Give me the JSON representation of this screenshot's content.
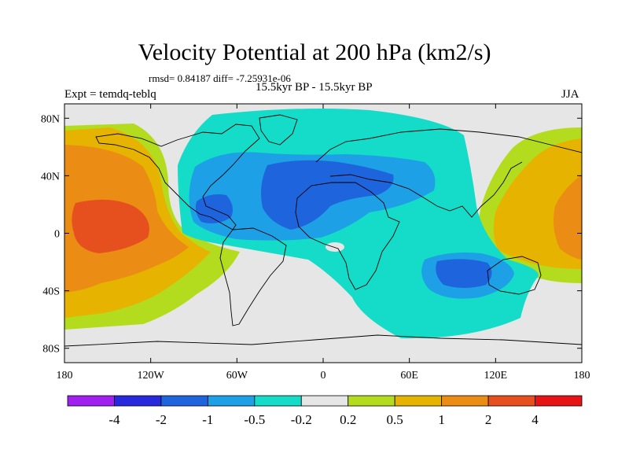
{
  "title": "Velocity Potential at 200 hPa (km2/s)",
  "stats": "rmsd= 0.84187 diff= -7.25931e-06",
  "left_label": "Expt = temdq-teblq",
  "center_label": "15.5kyr BP - 15.5kyr BP",
  "right_label": "JJA",
  "lat_ticks": [
    {
      "value": 80,
      "label": "80N"
    },
    {
      "value": 40,
      "label": "40N"
    },
    {
      "value": 0,
      "label": "0"
    },
    {
      "value": -40,
      "label": "40S"
    },
    {
      "value": -80,
      "label": "80S"
    }
  ],
  "lon_ticks": [
    {
      "value": -180,
      "label": "180"
    },
    {
      "value": -120,
      "label": "120W"
    },
    {
      "value": -60,
      "label": "60W"
    },
    {
      "value": 0,
      "label": "0"
    },
    {
      "value": 60,
      "label": "60E"
    },
    {
      "value": 120,
      "label": "120E"
    },
    {
      "value": 180,
      "label": "180"
    }
  ],
  "colorbar": {
    "colors": [
      "#a020f0",
      "#2828dc",
      "#1e64dc",
      "#1ea0e6",
      "#14dcc8",
      "#e6e6e6",
      "#b4dc1e",
      "#e6b400",
      "#eb8c14",
      "#e6501e",
      "#e61414"
    ],
    "labels": [
      "-4",
      "-2",
      "-1",
      "-0.5",
      "-0.2",
      "0.2",
      "0.5",
      "1",
      "2",
      "4"
    ]
  },
  "colors": {
    "background": "#e6e6e6",
    "land_outline": "#000000"
  }
}
